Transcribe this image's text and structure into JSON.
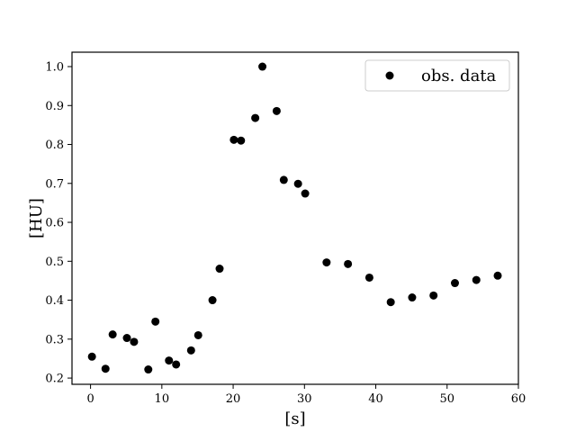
{
  "chart_data": {
    "type": "scatter",
    "xlabel": "[s]",
    "ylabel": "[HU]",
    "xlim": [
      -2.6,
      60
    ],
    "ylim": [
      0.184,
      1.037
    ],
    "x_ticks": [
      0,
      10,
      20,
      30,
      40,
      50,
      60
    ],
    "y_ticks": [
      0.2,
      0.3,
      0.4,
      0.5,
      0.6,
      0.7,
      0.8,
      0.9,
      1.0
    ],
    "x_tick_labels": [
      "0",
      "10",
      "20",
      "30",
      "40",
      "50",
      "60"
    ],
    "y_tick_labels": [
      "0.2",
      "0.3",
      "0.4",
      "0.5",
      "0.6",
      "0.7",
      "0.8",
      "0.9",
      "1.0"
    ],
    "grid": false,
    "legend_position": "top-right",
    "series": [
      {
        "name": "obs. data",
        "color": "#000000",
        "points": [
          [
            0.2,
            0.255
          ],
          [
            2.1,
            0.224
          ],
          [
            3.1,
            0.312
          ],
          [
            5.1,
            0.303
          ],
          [
            6.1,
            0.293
          ],
          [
            8.1,
            0.222
          ],
          [
            9.1,
            0.345
          ],
          [
            11.0,
            0.245
          ],
          [
            12.0,
            0.235
          ],
          [
            14.1,
            0.271
          ],
          [
            15.1,
            0.31
          ],
          [
            17.1,
            0.4
          ],
          [
            18.1,
            0.481
          ],
          [
            20.1,
            0.812
          ],
          [
            21.1,
            0.81
          ],
          [
            23.1,
            0.868
          ],
          [
            24.1,
            1.0
          ],
          [
            26.1,
            0.886
          ],
          [
            27.1,
            0.709
          ],
          [
            29.1,
            0.699
          ],
          [
            30.1,
            0.674
          ],
          [
            33.1,
            0.497
          ],
          [
            36.1,
            0.493
          ],
          [
            39.1,
            0.458
          ],
          [
            42.1,
            0.395
          ],
          [
            45.1,
            0.407
          ],
          [
            48.1,
            0.412
          ],
          [
            51.1,
            0.444
          ],
          [
            54.1,
            0.452
          ],
          [
            57.1,
            0.463
          ]
        ]
      }
    ]
  }
}
